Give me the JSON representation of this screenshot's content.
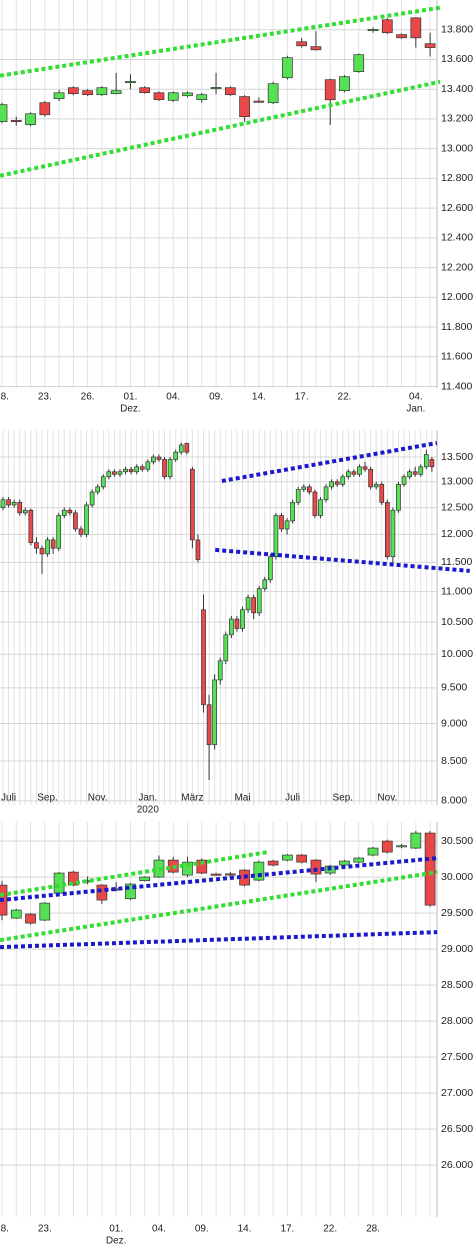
{
  "chart_data": [
    {
      "type": "candlestick",
      "log_scale": false,
      "grid": true,
      "up_color": "#55e055",
      "down_color": "#e84848",
      "categories": [
        "18.",
        null,
        null,
        "23.",
        null,
        null,
        "26.",
        null,
        null,
        "01.",
        null,
        null,
        "04.",
        null,
        null,
        "09.",
        null,
        null,
        "14.",
        null,
        null,
        "17.",
        null,
        null,
        "22.",
        null,
        null,
        null,
        null,
        "04.",
        null
      ],
      "category_sublabels": [
        null,
        null,
        null,
        null,
        null,
        null,
        null,
        null,
        null,
        "Dez.",
        null,
        null,
        null,
        null,
        null,
        null,
        null,
        null,
        null,
        null,
        null,
        null,
        null,
        null,
        null,
        null,
        null,
        null,
        null,
        "Jan.",
        null
      ],
      "open": [
        13182,
        13190,
        13161,
        13309,
        13336,
        13410,
        13390,
        13363,
        13370,
        13450,
        13410,
        13376,
        13325,
        13356,
        13330,
        13410,
        13410,
        13350,
        13320,
        13309,
        13477,
        13719,
        13686,
        13464,
        13390,
        13518,
        13800,
        13867,
        13767,
        13880,
        13706
      ],
      "high": [
        13310,
        13215,
        13245,
        13320,
        13395,
        13420,
        13400,
        13420,
        13510,
        13500,
        13420,
        13385,
        13385,
        13385,
        13375,
        13510,
        13420,
        13360,
        13345,
        13450,
        13625,
        13745,
        13790,
        13470,
        13495,
        13640,
        13815,
        13880,
        13775,
        13885,
        13780
      ],
      "low": [
        13170,
        13155,
        13150,
        13215,
        13320,
        13360,
        13355,
        13355,
        13365,
        13400,
        13370,
        13320,
        13315,
        13345,
        13310,
        13365,
        13355,
        13180,
        13310,
        13300,
        13465,
        13680,
        13660,
        13160,
        13380,
        13510,
        13780,
        13770,
        13740,
        13680,
        13620
      ],
      "close": [
        13296,
        13188,
        13235,
        13228,
        13376,
        13370,
        13363,
        13410,
        13390,
        13452,
        13377,
        13330,
        13376,
        13375,
        13363,
        13412,
        13363,
        13215,
        13318,
        13437,
        13612,
        13692,
        13665,
        13329,
        13484,
        13632,
        13802,
        13780,
        13746,
        13746,
        13680
      ],
      "ylim": [
        11390,
        14000
      ],
      "yticks": [
        {
          "value": 13800,
          "label": "13.800"
        },
        {
          "value": 13600,
          "label": "13.600"
        },
        {
          "value": 13400,
          "label": "13.400"
        },
        {
          "value": 13200,
          "label": "13.200"
        },
        {
          "value": 13000,
          "label": "13.000"
        },
        {
          "value": 12800,
          "label": "12.800"
        },
        {
          "value": 12600,
          "label": "12.600"
        },
        {
          "value": 12400,
          "label": "12.400"
        },
        {
          "value": 12200,
          "label": "12.200"
        },
        {
          "value": 12000,
          "label": "12.000"
        },
        {
          "value": 11800,
          "label": "11.800"
        },
        {
          "value": 11600,
          "label": "11.600"
        },
        {
          "value": 11400,
          "label": "11.400"
        }
      ],
      "trendlines": [
        {
          "color": "#33dd33",
          "x": [
            -0.14,
            30.7
          ],
          "y": [
            13491,
            13948
          ]
        },
        {
          "color": "#33dd33",
          "x": [
            -0.14,
            30.7
          ],
          "y": [
            12818,
            13450
          ]
        }
      ]
    },
    {
      "type": "candlestick",
      "log_scale": true,
      "grid": true,
      "up_color": "#55e055",
      "down_color": "#e84848",
      "categories": [
        null,
        "Juli",
        null,
        null,
        null,
        null,
        null,
        null,
        "Sep.",
        null,
        null,
        null,
        null,
        null,
        null,
        null,
        null,
        "Nov.",
        null,
        null,
        null,
        null,
        null,
        null,
        null,
        null,
        "Jan.",
        null,
        null,
        null,
        null,
        null,
        null,
        null,
        "März",
        null,
        null,
        null,
        null,
        null,
        null,
        null,
        null,
        "Mai",
        null,
        null,
        null,
        null,
        null,
        null,
        null,
        null,
        "Juli",
        null,
        null,
        null,
        null,
        null,
        null,
        null,
        null,
        "Sep.",
        null,
        null,
        null,
        null,
        null,
        null,
        null,
        "Nov.",
        null,
        null,
        null,
        null,
        null,
        null,
        null,
        null
      ],
      "category_sublabels": [
        null,
        null,
        null,
        null,
        null,
        null,
        null,
        null,
        null,
        null,
        null,
        null,
        null,
        null,
        null,
        null,
        null,
        null,
        null,
        null,
        null,
        null,
        null,
        null,
        null,
        null,
        "2020",
        null,
        null,
        null,
        null,
        null,
        null,
        null,
        null,
        null,
        null,
        null,
        null,
        null,
        null,
        null,
        null,
        null,
        null,
        null,
        null,
        null,
        null,
        null,
        null,
        null,
        null,
        null,
        null,
        null,
        null,
        null,
        null,
        null,
        null,
        null,
        null,
        null,
        null,
        null,
        null,
        null,
        null,
        null,
        null,
        null,
        null,
        null,
        null,
        null,
        null,
        null
      ],
      "open": [
        12500,
        12650,
        12550,
        12600,
        12400,
        12450,
        11850,
        11750,
        11650,
        11900,
        11750,
        12350,
        12450,
        12400,
        12100,
        12000,
        12550,
        12800,
        12900,
        13100,
        13200,
        13150,
        13200,
        13250,
        13200,
        13300,
        13250,
        13400,
        13500,
        13450,
        13100,
        13450,
        13600,
        13780,
        13250,
        11900,
        10700,
        9260,
        8714,
        9617,
        9900,
        10300,
        10550,
        10400,
        10700,
        10900,
        10650,
        11050,
        11200,
        11600,
        12350,
        12100,
        12250,
        12600,
        12850,
        12900,
        12800,
        12350,
        12650,
        12900,
        13000,
        12950,
        13100,
        13200,
        13150,
        13300,
        13250,
        12900,
        12950,
        12600,
        11600,
        12450,
        12950,
        13100,
        13200,
        13150,
        13300,
        13450
      ],
      "high": [
        12700,
        12700,
        12650,
        12650,
        12500,
        12480,
        11950,
        11800,
        11950,
        11950,
        12400,
        12500,
        12500,
        12450,
        12150,
        12600,
        12850,
        12950,
        13150,
        13250,
        13250,
        13250,
        13300,
        13300,
        13350,
        13350,
        13450,
        13550,
        13550,
        13500,
        13500,
        13650,
        13800,
        13800,
        13300,
        12000,
        10950,
        9400,
        9700,
        9950,
        10350,
        10600,
        10600,
        10750,
        10950,
        10950,
        11100,
        11250,
        11650,
        12400,
        12400,
        12300,
        12650,
        12900,
        12950,
        12950,
        12850,
        12700,
        12950,
        13050,
        13050,
        13150,
        13250,
        13250,
        13350,
        13400,
        13300,
        13000,
        13000,
        12650,
        12500,
        13000,
        13150,
        13250,
        13300,
        13350,
        13650,
        13500
      ],
      "low": [
        12450,
        12500,
        12500,
        12350,
        12350,
        11800,
        11650,
        11300,
        11600,
        11650,
        11700,
        12300,
        12350,
        12050,
        11950,
        11950,
        12500,
        12750,
        12850,
        13050,
        13100,
        13100,
        13150,
        13150,
        13150,
        13200,
        13200,
        13350,
        13400,
        13050,
        13050,
        13400,
        13550,
        13550,
        11750,
        11500,
        9150,
        8259,
        8650,
        9550,
        9850,
        10250,
        10350,
        10350,
        10650,
        10550,
        10600,
        11000,
        11150,
        11550,
        12050,
        12000,
        12200,
        12550,
        12800,
        12750,
        12300,
        12300,
        12600,
        12850,
        12900,
        12900,
        13050,
        13100,
        13100,
        13200,
        12850,
        12850,
        12550,
        11550,
        11450,
        12400,
        12900,
        13050,
        13100,
        13100,
        13250,
        13200
      ],
      "close": [
        12650,
        12550,
        12600,
        12400,
        12450,
        11850,
        11750,
        11650,
        11900,
        11750,
        12350,
        12450,
        12400,
        12100,
        12000,
        12550,
        12800,
        12900,
        13100,
        13200,
        13150,
        13200,
        13250,
        13200,
        13300,
        13250,
        13400,
        13500,
        13450,
        13100,
        13450,
        13600,
        13750,
        13600,
        11900,
        11550,
        9260,
        8714,
        9617,
        9900,
        10300,
        10550,
        10400,
        10700,
        10900,
        10650,
        11050,
        11200,
        11600,
        12350,
        12100,
        12250,
        12600,
        12850,
        12900,
        12800,
        12350,
        12650,
        12900,
        13000,
        12950,
        13100,
        13200,
        13150,
        13300,
        13250,
        12900,
        12950,
        12600,
        11600,
        12450,
        12950,
        13100,
        13200,
        13150,
        13300,
        13550,
        13300
      ],
      "ylim": [
        7950,
        14066
      ],
      "yticks": [
        {
          "value": 13500,
          "label": "13.500"
        },
        {
          "value": 13000,
          "label": "13.000"
        },
        {
          "value": 12500,
          "label": "12.500"
        },
        {
          "value": 12000,
          "label": "12.000"
        },
        {
          "value": 11500,
          "label": "11.500"
        },
        {
          "value": 11000,
          "label": "11.000"
        },
        {
          "value": 10500,
          "label": "10.500"
        },
        {
          "value": 10000,
          "label": "10.000"
        },
        {
          "value": 9500,
          "label": "9.500"
        },
        {
          "value": 9000,
          "label": "9.000"
        },
        {
          "value": 8500,
          "label": "8.500"
        },
        {
          "value": 8000,
          "label": "8.000"
        }
      ],
      "trendlines": [
        {
          "color": "#1a1acc",
          "x": [
            39.3,
            77.9
          ],
          "y": [
            13016,
            13790
          ]
        },
        {
          "color": "#1a1acc",
          "x": [
            38.1,
            83.8
          ],
          "y": [
            11720,
            11352
          ]
        }
      ]
    },
    {
      "type": "candlestick",
      "log_scale": false,
      "grid": true,
      "up_color": "#55e055",
      "down_color": "#e84848",
      "categories": [
        "18.",
        null,
        null,
        "23.",
        null,
        null,
        null,
        null,
        "01.",
        null,
        null,
        "04.",
        null,
        null,
        "09.",
        null,
        null,
        "14.",
        null,
        null,
        "17.",
        null,
        null,
        "22.",
        null,
        null,
        "28.",
        null,
        null,
        null,
        null
      ],
      "category_sublabels": [
        null,
        null,
        null,
        null,
        null,
        null,
        null,
        null,
        "Dez.",
        null,
        null,
        null,
        null,
        null,
        null,
        null,
        null,
        null,
        null,
        null,
        null,
        null,
        null,
        null,
        null,
        null,
        null,
        null,
        null,
        null,
        null
      ],
      "open": [
        29889,
        29430,
        29486,
        29403,
        29778,
        30069,
        29944,
        29889,
        29836,
        29700,
        29950,
        30000,
        30236,
        30028,
        30236,
        30042,
        30045,
        30097,
        29958,
        30222,
        30236,
        30306,
        30236,
        30056,
        30167,
        30208,
        30306,
        30500,
        30430,
        30403,
        30611
      ],
      "high": [
        29950,
        29560,
        29500,
        29650,
        30070,
        30090,
        30010,
        29900,
        29930,
        29920,
        30010,
        30300,
        30280,
        30280,
        30260,
        30060,
        30070,
        30110,
        30230,
        30240,
        30320,
        30320,
        30250,
        30170,
        30240,
        30280,
        30420,
        30520,
        30460,
        30640,
        30640
      ],
      "low": [
        29400,
        29420,
        29340,
        29390,
        29770,
        29870,
        29900,
        29630,
        29800,
        29680,
        29940,
        29990,
        30050,
        30000,
        30040,
        30020,
        29990,
        29870,
        29940,
        30150,
        30220,
        30190,
        29930,
        30030,
        30150,
        30190,
        30290,
        30330,
        30400,
        30390,
        29590
      ],
      "close": [
        29472,
        29542,
        29361,
        29639,
        30056,
        29889,
        29950,
        29681,
        29830,
        29903,
        30000,
        30236,
        30069,
        30208,
        30056,
        30040,
        30042,
        29889,
        30208,
        30167,
        30306,
        30208,
        30042,
        30153,
        30222,
        30264,
        30403,
        30347,
        30436,
        30611,
        29611
      ],
      "ylim": [
        25280,
        30765
      ],
      "yticks": [
        {
          "value": 30500,
          "label": "30.500"
        },
        {
          "value": 30000,
          "label": "30.000"
        },
        {
          "value": 29500,
          "label": "29.500"
        },
        {
          "value": 29000,
          "label": "29.000"
        },
        {
          "value": 28500,
          "label": "28.500"
        },
        {
          "value": 28000,
          "label": "28.000"
        },
        {
          "value": 27500,
          "label": "27.500"
        },
        {
          "value": 27000,
          "label": "27.000"
        },
        {
          "value": 26500,
          "label": "26.500"
        },
        {
          "value": 26000,
          "label": "26.000"
        }
      ],
      "trendlines": [
        {
          "color": "#33dd33",
          "x": [
            -0.14,
            18.6
          ],
          "y": [
            29750,
            30347
          ]
        },
        {
          "color": "#1a1acc",
          "x": [
            -0.14,
            30.5
          ],
          "y": [
            29681,
            30264
          ]
        },
        {
          "color": "#33dd33",
          "x": [
            -0.14,
            30.5
          ],
          "y": [
            29125,
            30069
          ]
        },
        {
          "color": "#1a1acc",
          "x": [
            -0.14,
            30.5
          ],
          "y": [
            29028,
            29236
          ]
        }
      ]
    }
  ]
}
